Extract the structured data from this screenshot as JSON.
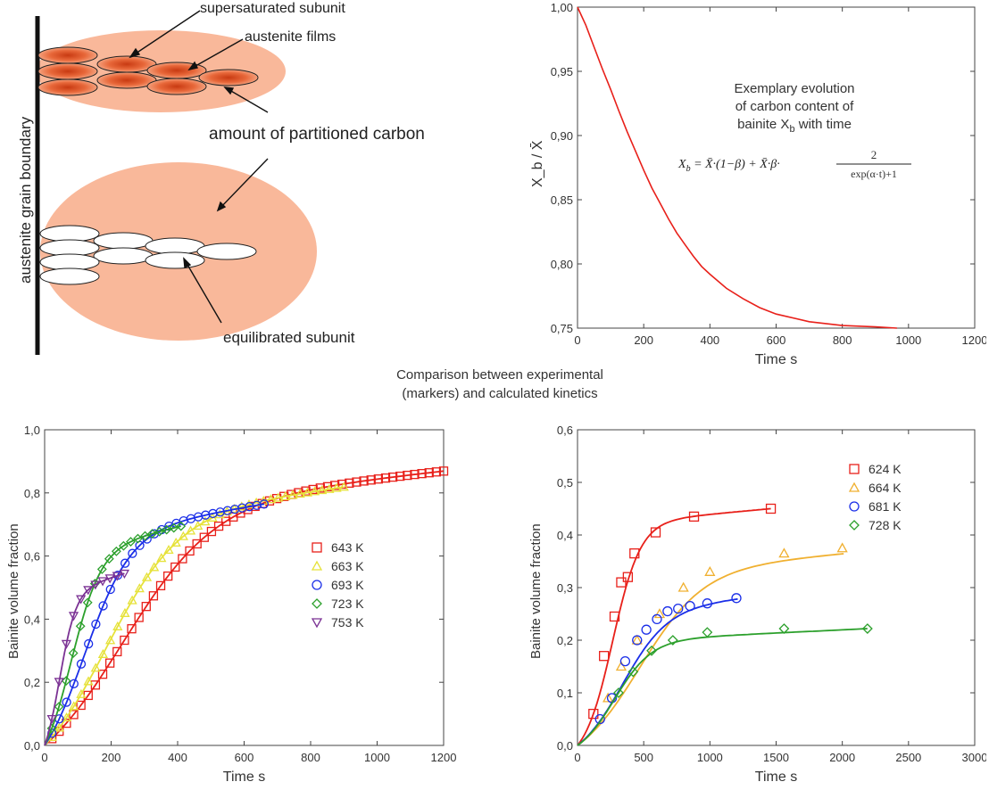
{
  "schematic": {
    "labels": {
      "supersaturated": "supersaturated subunit",
      "films": "austenite films",
      "carbon": "amount of partitioned carbon",
      "equilibrated": "equilibrated subunit",
      "boundary": "austenite grain boundary"
    },
    "colors": {
      "halo": "#f9b89a",
      "subunit_fill": "#e8683a",
      "subunit_core": "#c83a12"
    }
  },
  "middle_caption": {
    "line1": "Comparison between experimental",
    "line2": "(markers) and calculated kinetics"
  },
  "formula": {
    "lhs": "X",
    "lhs_sub": "b",
    "rhs": "= X̄·(1−β) + X̄·β·",
    "num": "2",
    "den": "exp(α·t)+1"
  },
  "chart_data": [
    {
      "id": "carbon",
      "type": "line",
      "title": "",
      "annotation": [
        "Exemplary evolution",
        "of carbon content of",
        "bainite X",
        "b",
        " with time"
      ],
      "xlabel": "Time s",
      "ylabel": "X_b / X̄",
      "xlim": [
        0,
        1200
      ],
      "ylim": [
        0.75,
        1.0
      ],
      "xticks": [
        0,
        200,
        400,
        600,
        800,
        1000,
        1200
      ],
      "yticks": [
        0.75,
        0.8,
        0.85,
        0.9,
        0.95,
        1.0
      ],
      "ytick_labels": [
        "0,75",
        "0,80",
        "0,85",
        "0,90",
        "0,95",
        "1,00"
      ],
      "xtick_labels": [
        "0",
        "200",
        "400",
        "600",
        "800",
        "1000",
        "1200"
      ],
      "series": [
        {
          "color": "#e8201a",
          "x": [
            0,
            25,
            50,
            75,
            100,
            125,
            150,
            175,
            200,
            225,
            250,
            275,
            300,
            325,
            350,
            375,
            400,
            450,
            500,
            550,
            600,
            700,
            800,
            900,
            965
          ],
          "y": [
            1.0,
            0.986,
            0.969,
            0.952,
            0.936,
            0.919,
            0.903,
            0.888,
            0.873,
            0.859,
            0.847,
            0.835,
            0.824,
            0.815,
            0.806,
            0.798,
            0.792,
            0.781,
            0.773,
            0.766,
            0.761,
            0.755,
            0.752,
            0.751,
            0.75
          ]
        }
      ]
    },
    {
      "id": "kinetics1",
      "type": "scatter",
      "xlabel": "Time s",
      "ylabel": "Bainite volume fraction",
      "xlim": [
        0,
        1200
      ],
      "ylim": [
        0,
        1.0
      ],
      "xticks": [
        0,
        200,
        400,
        600,
        800,
        1000,
        1200
      ],
      "xtick_labels": [
        "0",
        "200",
        "400",
        "600",
        "800",
        "1000",
        "1200"
      ],
      "yticks": [
        0,
        0.2,
        0.4,
        0.6,
        0.8,
        1.0
      ],
      "ytick_labels": [
        "0,0",
        "0,2",
        "0,4",
        "0,6",
        "0,8",
        "1,0"
      ],
      "legend_position": "right",
      "series": [
        {
          "name": "643 K",
          "color": "#e8201a",
          "marker": "square",
          "tmax": 1200,
          "vmax": 0.87,
          "t0": 235,
          "w": 140
        },
        {
          "name": "663 K",
          "color": "#e6e23a",
          "marker": "triangle",
          "tmax": 900,
          "vmax": 0.82,
          "t0": 185,
          "w": 110
        },
        {
          "name": "693 K",
          "color": "#1a2ee8",
          "marker": "circle",
          "tmax": 660,
          "vmax": 0.765,
          "t0": 120,
          "w": 70
        },
        {
          "name": "723 K",
          "color": "#2ca02c",
          "marker": "diamond",
          "tmax": 410,
          "vmax": 0.695,
          "t0": 80,
          "w": 45
        },
        {
          "name": "753 K",
          "color": "#7b3294",
          "marker": "triangle-down",
          "tmax": 240,
          "vmax": 0.545,
          "t0": 45,
          "w": 25
        }
      ]
    },
    {
      "id": "kinetics2",
      "type": "scatter",
      "xlabel": "Time s",
      "ylabel": "Bainite volume fraction",
      "xlim": [
        0,
        3000
      ],
      "ylim": [
        0,
        0.6
      ],
      "xticks": [
        0,
        500,
        1000,
        1500,
        2000,
        2500,
        3000
      ],
      "xtick_labels": [
        "0",
        "500",
        "1000",
        "1500",
        "2000",
        "2500",
        "3000"
      ],
      "yticks": [
        0,
        0.1,
        0.2,
        0.3,
        0.4,
        0.5,
        0.6
      ],
      "ytick_labels": [
        "0,0",
        "0,1",
        "0,2",
        "0,3",
        "0,4",
        "0,5",
        "0,6"
      ],
      "legend_position": "top-right",
      "series": [
        {
          "name": "624 K",
          "color": "#e8201a",
          "marker": "square",
          "x": [
            120,
            200,
            280,
            330,
            380,
            430,
            590,
            880,
            1460
          ],
          "y": [
            0.06,
            0.17,
            0.245,
            0.31,
            0.32,
            0.365,
            0.405,
            0.435,
            0.45
          ],
          "curve": {
            "vmax": 0.45,
            "t0": 265,
            "w": 105,
            "tmax": 1460
          }
        },
        {
          "name": "664 K",
          "color": "#f0b030",
          "marker": "triangle",
          "x": [
            230,
            330,
            450,
            620,
            800,
            1000,
            1560,
            2000
          ],
          "y": [
            0.09,
            0.15,
            0.2,
            0.25,
            0.3,
            0.33,
            0.365,
            0.375
          ],
          "curve": {
            "vmax": 0.365,
            "t0": 470,
            "w": 240,
            "tmax": 2010
          }
        },
        {
          "name": "681 K",
          "color": "#1a2ee8",
          "marker": "circle",
          "x": [
            170,
            260,
            360,
            450,
            520,
            600,
            680,
            760,
            850,
            980,
            1200
          ],
          "y": [
            0.05,
            0.09,
            0.16,
            0.2,
            0.22,
            0.24,
            0.255,
            0.26,
            0.265,
            0.27,
            0.28
          ],
          "curve": {
            "vmax": 0.28,
            "t0": 340,
            "w": 170,
            "tmax": 1210
          }
        },
        {
          "name": "728 K",
          "color": "#2ca02c",
          "marker": "diamond",
          "x": [
            310,
            420,
            560,
            720,
            980,
            1560,
            2190
          ],
          "y": [
            0.1,
            0.14,
            0.18,
            0.2,
            0.215,
            0.222,
            0.222
          ],
          "curve": {
            "vmax": 0.222,
            "t0": 280,
            "w": 140,
            "tmax": 2190
          }
        }
      ]
    }
  ]
}
